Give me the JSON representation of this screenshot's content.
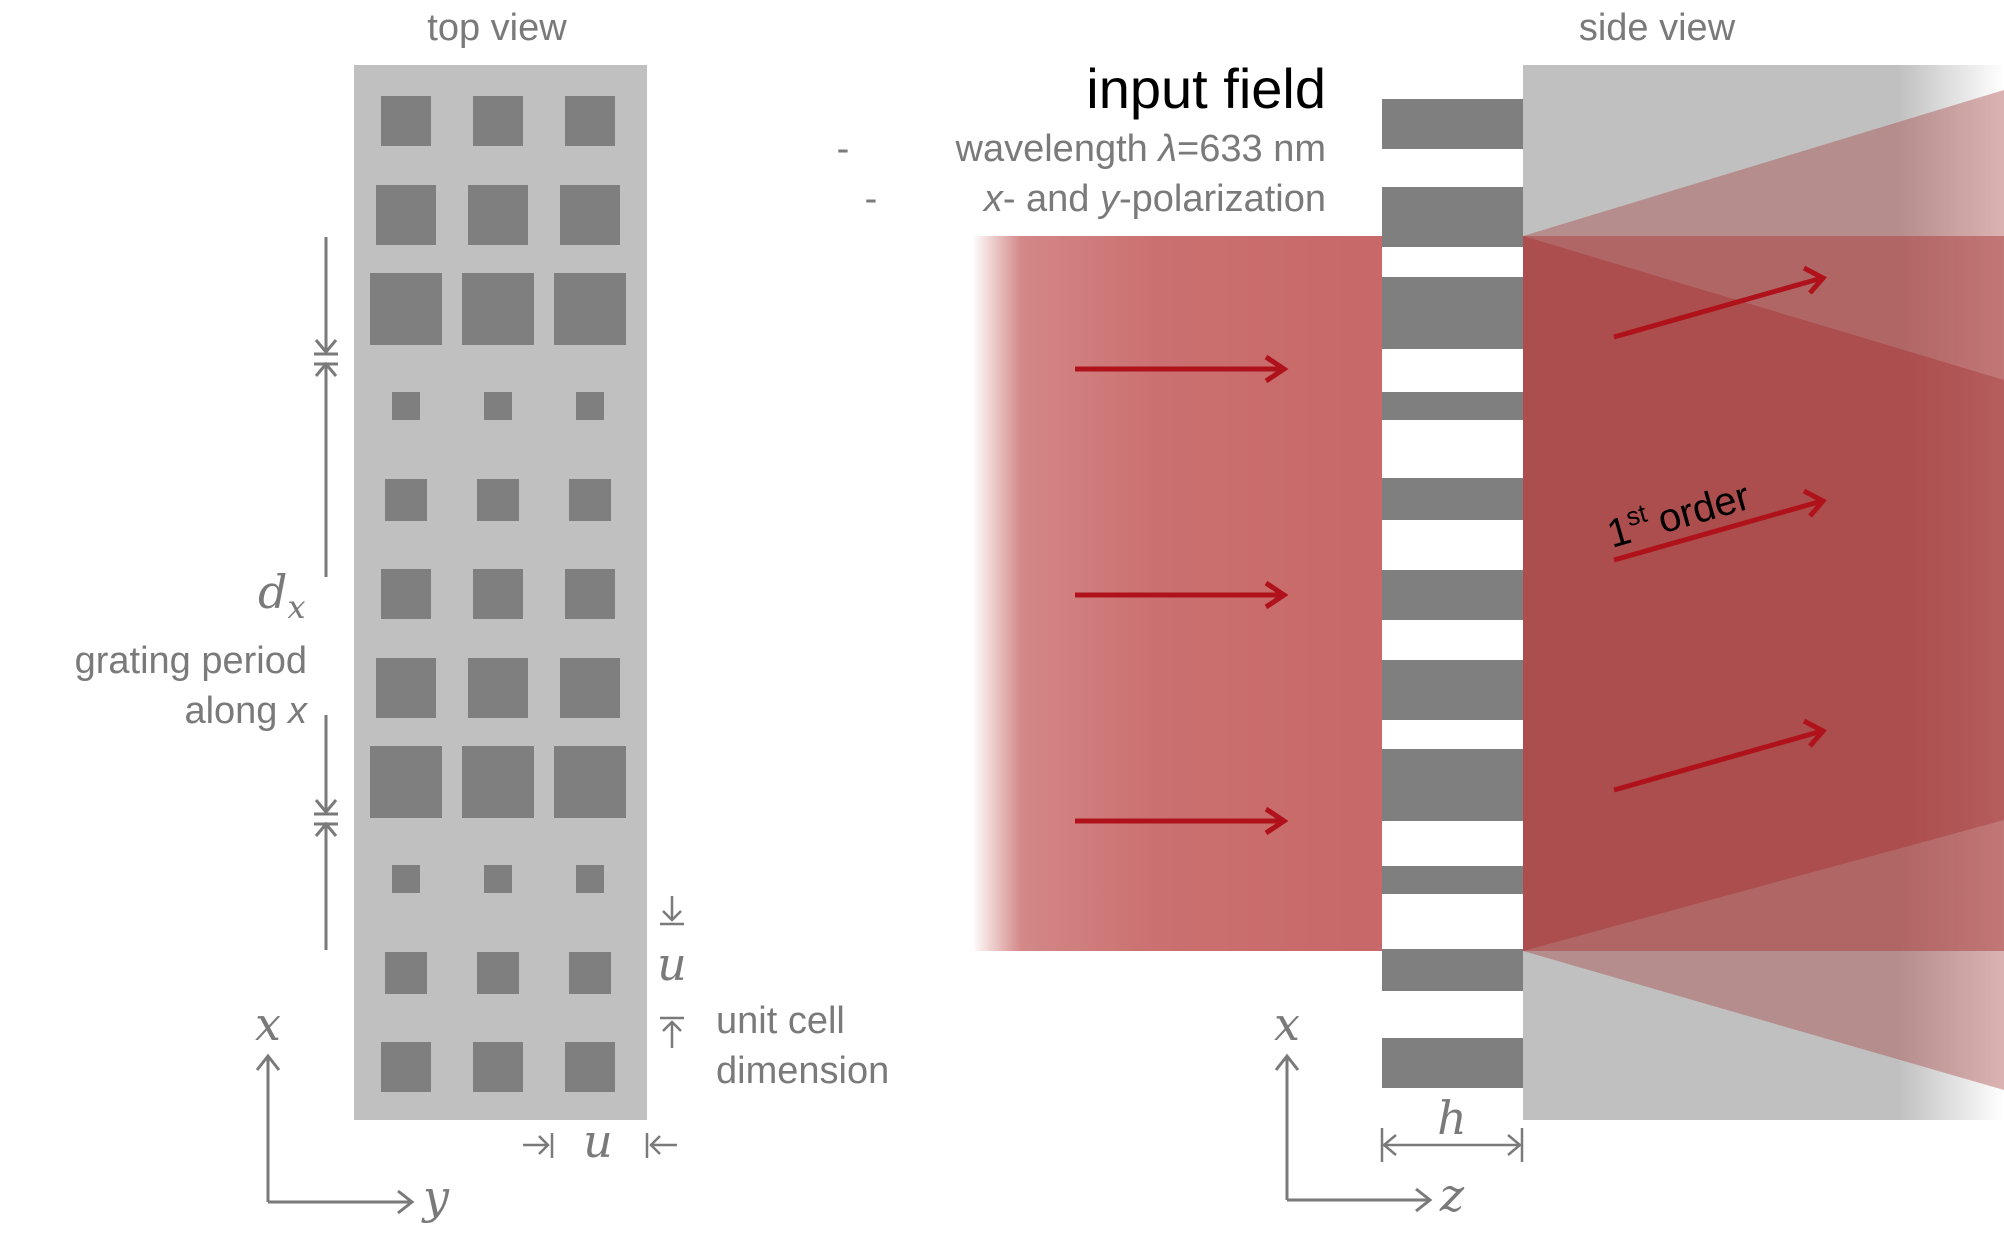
{
  "top_view": {
    "title": "top view",
    "period_symbol": "d",
    "period_subscript": "x",
    "period_label_line1": "grating period",
    "period_label_line2_text": "along ",
    "period_label_line2_var": "x",
    "unit_symbol_vertical": "u",
    "unit_symbol_horizontal": "u",
    "unit_label_line1": "unit cell",
    "unit_label_line2": "dimension",
    "axis_vertical": "x",
    "axis_horizontal": "y"
  },
  "side_view": {
    "title": "side view",
    "input_title": "input field",
    "bullet_1_prefix": "wavelength ",
    "bullet_1_symbol": "λ",
    "bullet_1_value": "=633 nm",
    "bullet_2_var1": "x",
    "bullet_2_mid": "- and ",
    "bullet_2_var2": "y",
    "bullet_2_suffix": "-polarization",
    "bullet_marker": "-",
    "order_number": "1",
    "order_superscript": "st",
    "order_word": "order",
    "thickness_symbol": "h",
    "axis_vertical": "x",
    "axis_horizontal": "z"
  },
  "colors": {
    "substrate": "#c0c0c0",
    "pillar": "#7f7f7f",
    "beam": "#c56060",
    "arrow": "#b0121b",
    "annotation": "#7a7a7a"
  }
}
